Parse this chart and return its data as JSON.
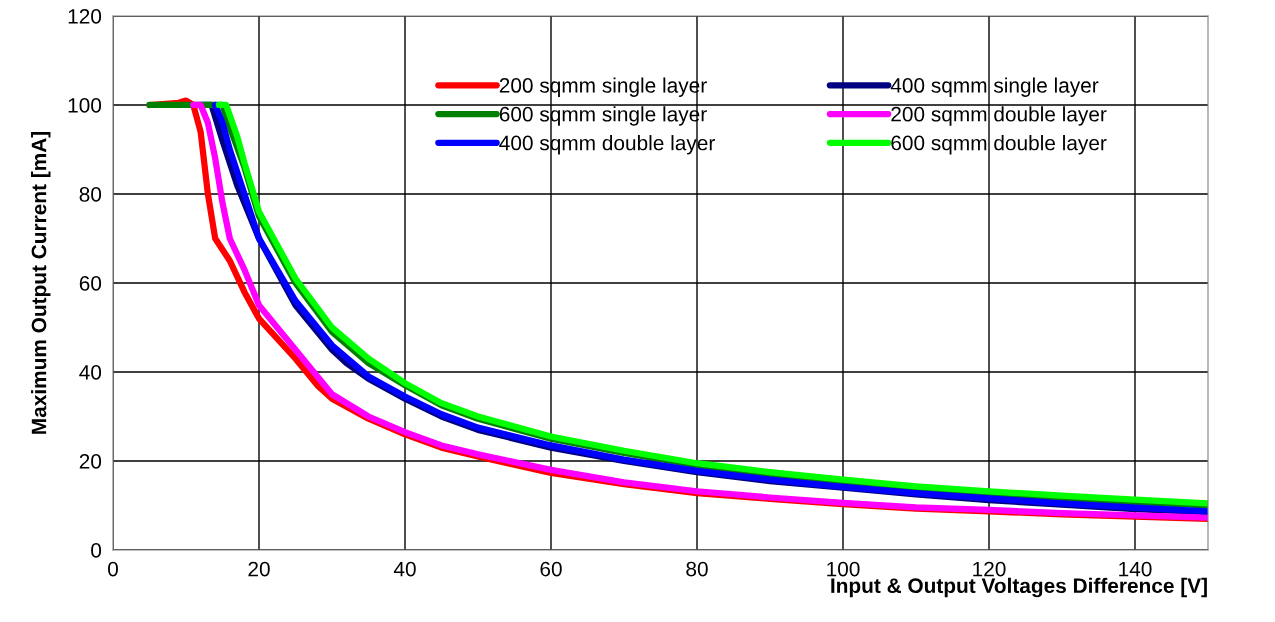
{
  "chart_data": {
    "type": "line",
    "xlabel": "Input & Output Voltages Difference [V]",
    "ylabel": "Maximum Output Current [mA]",
    "xlim": [
      0,
      150
    ],
    "xticks": [
      0,
      20,
      40,
      60,
      80,
      100,
      120,
      140
    ],
    "ylim": [
      0,
      120
    ],
    "yticks": [
      0,
      20,
      40,
      60,
      80,
      100,
      120
    ],
    "grid": true,
    "legend": "top right",
    "marker": "none",
    "line_style": "solid",
    "series": [
      {
        "name": "200 sqmm single layer",
        "color": "#ff0000",
        "x": [
          5,
          9,
          10,
          11,
          12,
          13,
          14,
          16,
          18,
          20,
          25,
          28,
          30,
          35,
          40,
          45,
          50,
          60,
          70,
          80,
          90,
          100,
          110,
          120,
          130,
          140,
          150
        ],
        "values": [
          100,
          100.5,
          101,
          100,
          94,
          80,
          70,
          65,
          58,
          52,
          43,
          37,
          34,
          29.5,
          26,
          23,
          21,
          17.3,
          14.8,
          12.8,
          11.5,
          10.3,
          9.3,
          8.7,
          8,
          7.5,
          7
        ]
      },
      {
        "name": "400 sqmm single layer",
        "color": "#000080",
        "x": [
          12,
          13.5,
          15,
          17,
          20,
          25,
          30,
          32,
          35,
          40,
          45,
          50,
          60,
          70,
          80,
          90,
          100,
          110,
          120,
          130,
          140,
          150
        ],
        "values": [
          100,
          100,
          92,
          82,
          70,
          55,
          45,
          42,
          38.5,
          34,
          30,
          27,
          23,
          20,
          17.5,
          15.5,
          14,
          12.5,
          11.2,
          10.2,
          9.2,
          8.5
        ]
      },
      {
        "name": "600 sqmm single layer",
        "color": "#008000",
        "x": [
          5,
          15,
          16,
          18,
          20,
          25,
          30,
          35,
          40,
          45,
          50,
          60,
          70,
          80,
          90,
          100,
          110,
          120,
          130,
          140,
          150
        ],
        "values": [
          100,
          100,
          95,
          86,
          75,
          60,
          49,
          42,
          37,
          32.5,
          29.5,
          25,
          21.8,
          19,
          17,
          15.3,
          13.8,
          12.6,
          11.6,
          10.7,
          10
        ]
      },
      {
        "name": "200 sqmm double layer",
        "color": "#ff00ff",
        "x": [
          11,
          12,
          13,
          14,
          15,
          16,
          18,
          20,
          25,
          28,
          30,
          35,
          40,
          45,
          50,
          60,
          70,
          80,
          90,
          100,
          110,
          120,
          130,
          140,
          150
        ],
        "values": [
          100,
          100,
          96,
          88,
          78,
          70,
          63,
          55,
          45,
          39,
          35,
          30,
          26.5,
          23.5,
          21.5,
          18,
          15.2,
          13.2,
          11.8,
          10.6,
          9.6,
          9,
          8.3,
          7.8,
          7.3
        ]
      },
      {
        "name": "400 sqmm double layer",
        "color": "#0000ff",
        "x": [
          14,
          15,
          16,
          18,
          20,
          25,
          30,
          35,
          40,
          45,
          50,
          60,
          70,
          80,
          90,
          100,
          110,
          120,
          130,
          140,
          150
        ],
        "values": [
          100,
          96,
          90,
          80,
          70,
          56,
          46,
          39,
          34.5,
          30.5,
          27.5,
          23.5,
          20.3,
          17.8,
          15.8,
          14.2,
          12.8,
          11.6,
          10.5,
          9.5,
          8.7
        ]
      },
      {
        "name": "600 sqmm double layer",
        "color": "#00ff00",
        "x": [
          14.5,
          15.5,
          17,
          18,
          20,
          25,
          30,
          35,
          40,
          45,
          50,
          60,
          70,
          80,
          90,
          100,
          110,
          120,
          130,
          140,
          150
        ],
        "values": [
          100,
          100,
          93,
          87,
          76,
          61,
          50,
          43,
          37.5,
          33,
          30,
          25.5,
          22.3,
          19.5,
          17.5,
          15.8,
          14.3,
          13.2,
          12.2,
          11.3,
          10.5
        ]
      }
    ]
  }
}
